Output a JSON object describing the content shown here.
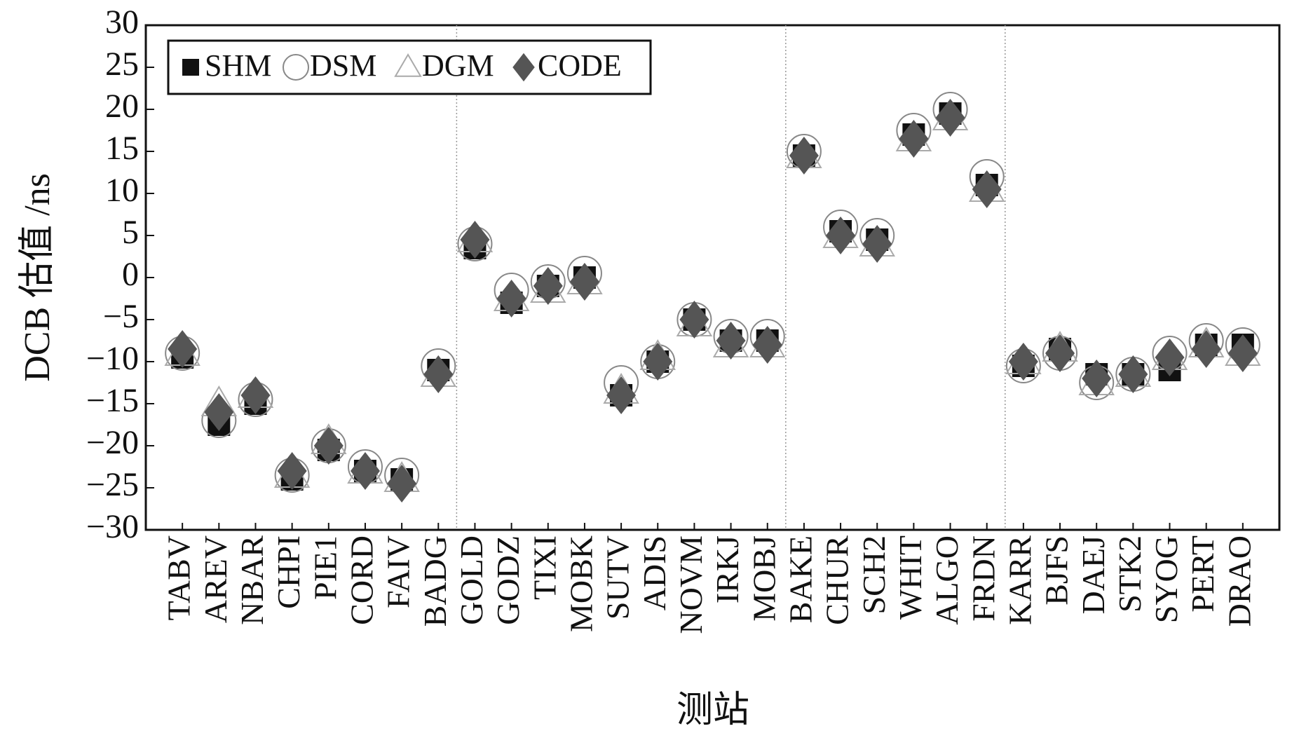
{
  "chart_data": {
    "type": "scatter",
    "x_label": "测站",
    "y_label": "DCB 估值 /ns",
    "categories": [
      "TABV",
      "AREV",
      "NBAR",
      "CHPI",
      "PIE1",
      "CORD",
      "FAIV",
      "BADG",
      "GOLD",
      "GODZ",
      "TIXI",
      "MOBK",
      "SUTV",
      "ADIS",
      "NOVM",
      "IRKJ",
      "MOBJ",
      "BAKE",
      "CHUR",
      "SCH2",
      "WHIT",
      "ALGO",
      "FRDN",
      "KARR",
      "BJFS",
      "DAEJ",
      "STK2",
      "SYOG",
      "PERT",
      "DRAO"
    ],
    "series": [
      {
        "name": "SHM",
        "marker": "square",
        "color": "#111111",
        "values": [
          -9.5,
          -17.5,
          -15,
          -24,
          -20.5,
          -23,
          -24,
          -11,
          3.5,
          -3,
          -1,
          0,
          -14,
          -10,
          -5,
          -7.5,
          -7.5,
          14.5,
          5.5,
          4.5,
          17,
          19.5,
          11,
          -10.5,
          -8.5,
          -11.5,
          -11.5,
          -11,
          -8,
          -8
        ]
      },
      {
        "name": "DSM",
        "marker": "circle",
        "color": "#888888",
        "values": [
          -9,
          -17,
          -14.5,
          -23.5,
          -20,
          -22.5,
          -23.5,
          -10.5,
          4,
          -1.5,
          -0.5,
          0.5,
          -12.5,
          -10,
          -5,
          -7,
          -7,
          15,
          6,
          5,
          17.5,
          20,
          12,
          -10.5,
          -9,
          -12.5,
          -11.5,
          -9,
          -7.5,
          -8
        ]
      },
      {
        "name": "DGM",
        "marker": "triangle",
        "color": "#aaaaaa",
        "values": [
          -9,
          -15,
          -14,
          -23.5,
          -19.5,
          -23,
          -24,
          -11.5,
          4.5,
          -2.5,
          -1.5,
          -0.5,
          -13.5,
          -9.5,
          -5.5,
          -8,
          -8,
          14.5,
          5,
          4,
          16.5,
          19,
          10.5,
          -10,
          -8.5,
          -12.5,
          -11.5,
          -9.5,
          -8,
          -9
        ]
      },
      {
        "name": "CODE",
        "marker": "diamond",
        "color": "#555555",
        "values": [
          -8.5,
          -16,
          -14,
          -23,
          -20,
          -23,
          -24.5,
          -11.5,
          4.5,
          -2.5,
          -1,
          -0.5,
          -14,
          -10,
          -5,
          -7.5,
          -8,
          14.5,
          5,
          4,
          16.5,
          19,
          10.5,
          -10,
          -9,
          -12,
          -11.5,
          -9.5,
          -8.5,
          -9
        ]
      }
    ],
    "ylim": [
      -30,
      30
    ],
    "yticks": [
      {
        "value": -30,
        "label": "−30"
      },
      {
        "value": -25,
        "label": "−25"
      },
      {
        "value": -20,
        "label": "−20"
      },
      {
        "value": -15,
        "label": "−15"
      },
      {
        "value": -10,
        "label": "−10"
      },
      {
        "value": -5,
        "label": "−5"
      },
      0,
      5,
      10,
      15,
      20,
      25,
      30
    ],
    "legend": "upper left"
  }
}
